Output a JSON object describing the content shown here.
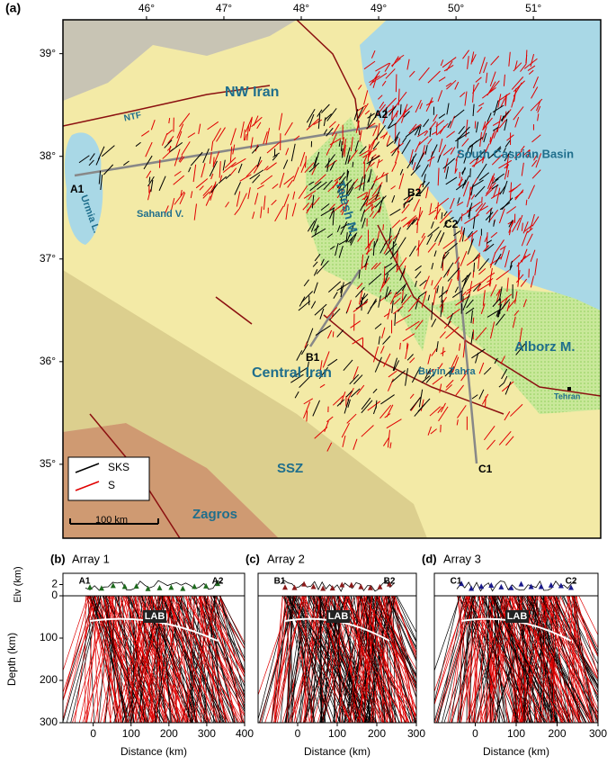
{
  "map": {
    "panel_label": "(a)",
    "xlim": [
      44.92,
      51.87
    ],
    "ylim": [
      34.28,
      39.33
    ],
    "xticks": [
      {
        "value": 46,
        "label": "46°"
      },
      {
        "value": 47,
        "label": "47°"
      },
      {
        "value": 48,
        "label": "48°"
      },
      {
        "value": 49,
        "label": "49°"
      },
      {
        "value": 50,
        "label": "50°"
      },
      {
        "value": 51,
        "label": "51°"
      }
    ],
    "yticks": [
      {
        "value": 35,
        "label": "35°"
      },
      {
        "value": 36,
        "label": "36°"
      },
      {
        "value": 37,
        "label": "37°"
      },
      {
        "value": 38,
        "label": "38°"
      },
      {
        "value": 39,
        "label": "39°"
      }
    ],
    "places": [
      "NW Iran",
      "NTF",
      "South Caspian Basin",
      "Talesh M.",
      "Sahand V.",
      "Urmia L.",
      "Central Iran",
      "Alborz M.",
      "Buyin Zahra",
      "Tehran",
      "SSZ",
      "Zagros"
    ],
    "profile_ends": [
      "A1",
      "A2",
      "B1",
      "B2",
      "C1",
      "C2"
    ],
    "legend": [
      {
        "name": "SKS",
        "color": "#000000"
      },
      {
        "name": "S",
        "color": "#e00000"
      }
    ],
    "scale_bar": "100 km"
  },
  "chart_data": [
    {
      "type": "raypath",
      "panel_label": "(b)",
      "title": "Array 1",
      "ends": [
        "A1",
        "A2"
      ],
      "annotation": "LAB",
      "color": "#1e6b1e",
      "xlabel": "Distance (km)",
      "ylabel": "Depth (km)",
      "elv_label": "Elv (km)",
      "xlim": [
        -80,
        400
      ],
      "xticks": [
        0,
        100,
        200,
        300,
        400
      ],
      "ylim": [
        300,
        0
      ],
      "yticks": [
        100,
        200,
        300
      ],
      "elv_ylim": [
        0,
        4
      ],
      "elv_ticks": [
        0,
        2
      ]
    },
    {
      "type": "raypath",
      "panel_label": "(c)",
      "title": "Array 2",
      "ends": [
        "B1",
        "B2"
      ],
      "annotation": "LAB",
      "color": "#8b1a1a",
      "xlabel": "Distance (km)",
      "xlim": [
        -100,
        300
      ],
      "xticks": [
        0,
        100,
        200,
        300
      ],
      "ylim": [
        300,
        0
      ],
      "elv_ylim": [
        0,
        4
      ]
    },
    {
      "type": "raypath",
      "panel_label": "(d)",
      "title": "Array 3",
      "ends": [
        "C1",
        "C2"
      ],
      "annotation": "LAB",
      "color": "#1a1a8b",
      "xlabel": "Distance (km)",
      "xlim": [
        -100,
        300
      ],
      "xticks": [
        0,
        100,
        200,
        300
      ],
      "ylim": [
        300,
        0
      ],
      "elv_ylim": [
        0,
        4
      ]
    }
  ]
}
